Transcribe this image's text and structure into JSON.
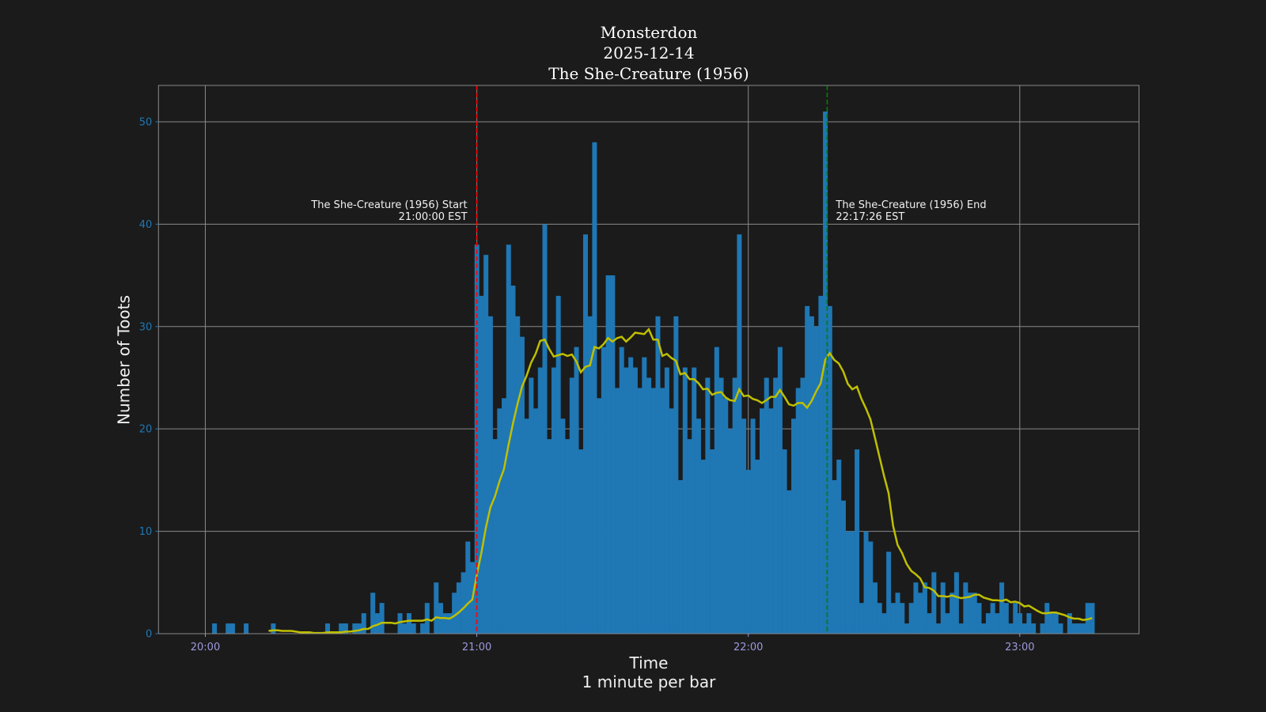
{
  "chart_data": {
    "type": "bar",
    "title_lines": [
      "Monsterdon",
      "2025-12-14",
      "The She-Creature (1956)"
    ],
    "xlabel": "Time",
    "xlabel_sub": "1 minute per bar",
    "ylabel": "Number of Toots",
    "ylim": [
      0,
      53.55
    ],
    "y_ticks": [
      "0",
      "10",
      "20",
      "30",
      "40",
      "50"
    ],
    "x_ticks": [
      "20:00",
      "21:00",
      "22:00",
      "23:00"
    ],
    "grid": true,
    "colors": {
      "background": "#1b1b1b",
      "bars": "#1f77b4",
      "rolling_line": "#bfbf00",
      "start_line": "#ff0000",
      "end_line": "#008000",
      "y_tick_labels": "#1f77b4",
      "x_tick_labels": "#9d99dd"
    },
    "x": [
      "20:00",
      "20:01",
      "20:02",
      "20:03",
      "20:04",
      "20:05",
      "20:06",
      "20:07",
      "20:08",
      "20:09",
      "20:10",
      "20:11",
      "20:12",
      "20:13",
      "20:14",
      "20:15",
      "20:16",
      "20:17",
      "20:18",
      "20:19",
      "20:20",
      "20:21",
      "20:22",
      "20:23",
      "20:24",
      "20:25",
      "20:26",
      "20:27",
      "20:28",
      "20:29",
      "20:30",
      "20:31",
      "20:32",
      "20:33",
      "20:34",
      "20:35",
      "20:36",
      "20:37",
      "20:38",
      "20:39",
      "20:40",
      "20:41",
      "20:42",
      "20:43",
      "20:44",
      "20:45",
      "20:46",
      "20:47",
      "20:48",
      "20:49",
      "20:50",
      "20:51",
      "20:52",
      "20:53",
      "20:54",
      "20:55",
      "20:56",
      "20:57",
      "20:58",
      "20:59",
      "21:00",
      "21:01",
      "21:02",
      "21:03",
      "21:04",
      "21:05",
      "21:06",
      "21:07",
      "21:08",
      "21:09",
      "21:10",
      "21:11",
      "21:12",
      "21:13",
      "21:14",
      "21:15",
      "21:16",
      "21:17",
      "21:18",
      "21:19",
      "21:20",
      "21:21",
      "21:22",
      "21:23",
      "21:24",
      "21:25",
      "21:26",
      "21:27",
      "21:28",
      "21:29",
      "21:30",
      "21:31",
      "21:32",
      "21:33",
      "21:34",
      "21:35",
      "21:36",
      "21:37",
      "21:38",
      "21:39",
      "21:40",
      "21:41",
      "21:42",
      "21:43",
      "21:44",
      "21:45",
      "21:46",
      "21:47",
      "21:48",
      "21:49",
      "21:50",
      "21:51",
      "21:52",
      "21:53",
      "21:54",
      "21:55",
      "21:56",
      "21:57",
      "21:58",
      "21:59",
      "22:00",
      "22:01",
      "22:02",
      "22:03",
      "22:04",
      "22:05",
      "22:06",
      "22:07",
      "22:08",
      "22:09",
      "22:10",
      "22:11",
      "22:12",
      "22:13",
      "22:14",
      "22:15",
      "22:16",
      "22:17",
      "22:18",
      "22:19",
      "22:20",
      "22:21",
      "22:22",
      "22:23",
      "22:24",
      "22:25",
      "22:26",
      "22:27",
      "22:28",
      "22:29",
      "22:30",
      "22:31",
      "22:32",
      "22:33",
      "22:34",
      "22:35",
      "22:36",
      "22:37",
      "22:38",
      "22:39",
      "22:40",
      "22:41",
      "22:42",
      "22:43",
      "22:44",
      "22:45",
      "22:46",
      "22:47",
      "22:48",
      "22:49",
      "22:50",
      "22:51",
      "22:52",
      "22:53",
      "22:54",
      "22:55",
      "22:56",
      "22:57",
      "22:58",
      "22:59",
      "23:00",
      "23:01",
      "23:02",
      "23:03",
      "23:04",
      "23:05",
      "23:06",
      "23:07",
      "23:08",
      "23:09",
      "23:10",
      "23:11",
      "23:12",
      "23:13",
      "23:14",
      "23:15",
      "23:16"
    ],
    "values": [
      0,
      0,
      1,
      0,
      0,
      1,
      1,
      0,
      0,
      1,
      0,
      0,
      0,
      0,
      0,
      1,
      0,
      0,
      0,
      0,
      0,
      0,
      0,
      0,
      0,
      0,
      0,
      1,
      0,
      0,
      1,
      1,
      0,
      1,
      1,
      2,
      0,
      4,
      2,
      3,
      0,
      0,
      0,
      2,
      1,
      2,
      1,
      0,
      1,
      3,
      0,
      5,
      3,
      2,
      2,
      4,
      5,
      6,
      9,
      7,
      38,
      33,
      37,
      31,
      19,
      22,
      23,
      38,
      34,
      31,
      29,
      21,
      25,
      22,
      26,
      40,
      19,
      26,
      33,
      21,
      19,
      25,
      28,
      18,
      39,
      31,
      48,
      23,
      28,
      35,
      35,
      24,
      28,
      26,
      27,
      26,
      24,
      27,
      25,
      24,
      31,
      24,
      26,
      22,
      31,
      15,
      26,
      19,
      26,
      21,
      17,
      25,
      18,
      28,
      25,
      23,
      20,
      25,
      39,
      21,
      16,
      21,
      17,
      22,
      25,
      22,
      25,
      28,
      18,
      14,
      21,
      24,
      25,
      32,
      31,
      30,
      33,
      51,
      32,
      15,
      17,
      13,
      10,
      10,
      18,
      3,
      10,
      9,
      5,
      3,
      2,
      8,
      3,
      4,
      3,
      1,
      3,
      5,
      4,
      5,
      2,
      6,
      1,
      5,
      2,
      4,
      6,
      1,
      5,
      4,
      4,
      3,
      1,
      2,
      3,
      2,
      5,
      3,
      1,
      3,
      2,
      1,
      2,
      1,
      0,
      1,
      3,
      2,
      2,
      1,
      0,
      2,
      1,
      1,
      1,
      3,
      3
    ],
    "overlay_line": {
      "type": "line",
      "description": "rolling mean of bar values",
      "window_minutes": 15
    },
    "annotations": [
      {
        "id": "start",
        "line1": "The She-Creature (1956) Start",
        "line2": "21:00:00 EST",
        "line_style": "dashed"
      },
      {
        "id": "end",
        "line1": "The She-Creature (1956) End",
        "line2": "22:17:26 EST",
        "line_style": "dashed"
      }
    ]
  }
}
